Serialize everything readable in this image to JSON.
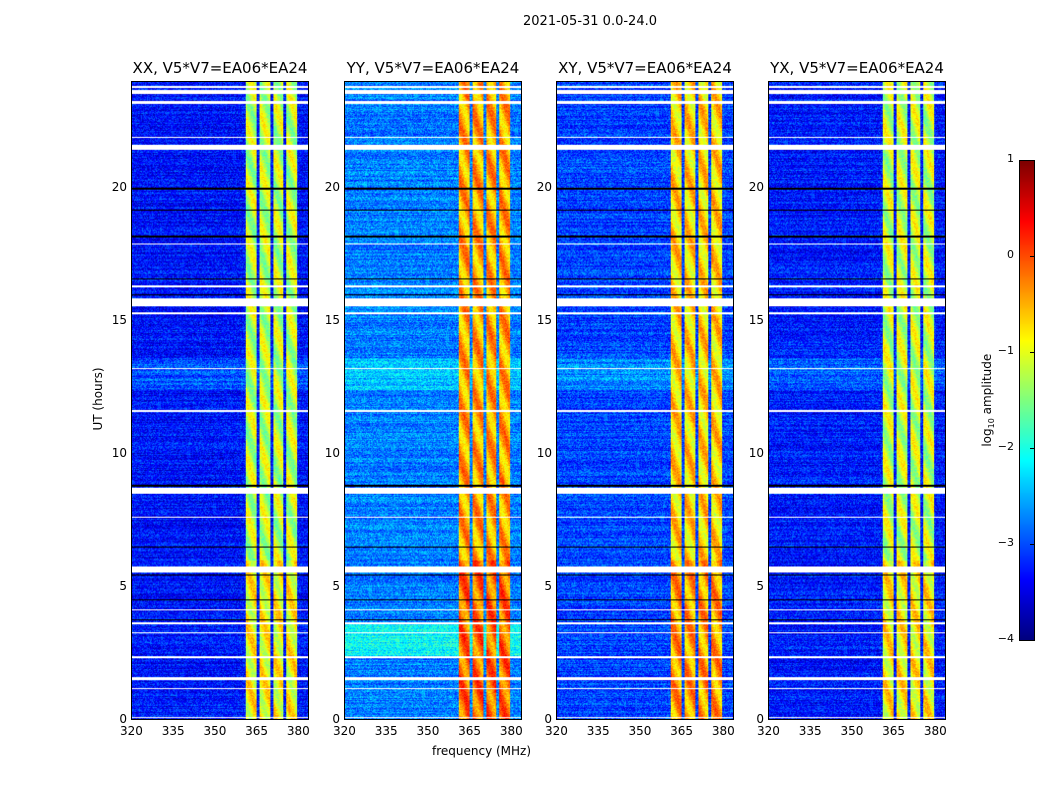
{
  "suptitle": "2021-05-31 0.0-24.0",
  "chart_data": {
    "type": "heatmap",
    "title": "2021-05-31 0.0-24.0",
    "xlabel": "frequency (MHz)",
    "ylabel": "UT (hours)",
    "xlim": [
      320,
      384
    ],
    "ylim": [
      0,
      24
    ],
    "xticks": [
      "320",
      "335",
      "350",
      "365",
      "380"
    ],
    "yticks": [
      "0",
      "5",
      "10",
      "15",
      "20"
    ],
    "colorbar": {
      "label": "log10 amplitude",
      "label_main": "log",
      "label_sub": "10",
      "label_rest": " amplitude",
      "range": [
        -4,
        1
      ],
      "ticks": [
        "−4",
        "−3",
        "−2",
        "−1",
        "0",
        "1"
      ],
      "colormap": "jet"
    },
    "rfi_band_mhz": [
      361,
      380
    ],
    "band_gaps_mhz": [
      [
        365.2,
        366.2
      ],
      [
        370.2,
        371.2
      ],
      [
        375.0,
        376.0
      ]
    ],
    "flagged_hours": [
      [
        23.55,
        23.7
      ],
      [
        23.2,
        23.3
      ],
      [
        23.8,
        23.85
      ],
      [
        21.45,
        21.65
      ],
      [
        21.9,
        21.95
      ],
      [
        15.55,
        15.85
      ],
      [
        15.25,
        15.35
      ],
      [
        8.5,
        8.75
      ],
      [
        7.6,
        7.65
      ],
      [
        5.55,
        5.75
      ],
      [
        3.58,
        3.68
      ],
      [
        2.3,
        2.38
      ],
      [
        1.5,
        1.58
      ],
      [
        1.15,
        1.2
      ],
      [
        3.25,
        3.3
      ],
      [
        4.1,
        4.15
      ],
      [
        13.2,
        13.25
      ],
      [
        11.6,
        11.65
      ],
      [
        0.05,
        0.1
      ],
      [
        17.9,
        17.95
      ],
      [
        16.3,
        16.35
      ]
    ],
    "dark_hours": [
      20.0,
      18.2,
      16.6,
      16.0,
      8.8,
      6.5,
      5.45,
      4.5,
      3.75,
      19.2
    ],
    "panels": [
      {
        "title": "XX, V5*V7=EA06*EA24",
        "background_level": -3.3,
        "band_level": -1.2
      },
      {
        "title": "YY, V5*V7=EA06*EA24",
        "background_level": -2.75,
        "band_level": -0.45
      },
      {
        "title": "XY, V5*V7=EA06*EA24",
        "background_level": -3.05,
        "band_level": -0.7
      },
      {
        "title": "YX, V5*V7=EA06*EA24",
        "background_level": -3.25,
        "band_level": -1.15
      }
    ]
  }
}
